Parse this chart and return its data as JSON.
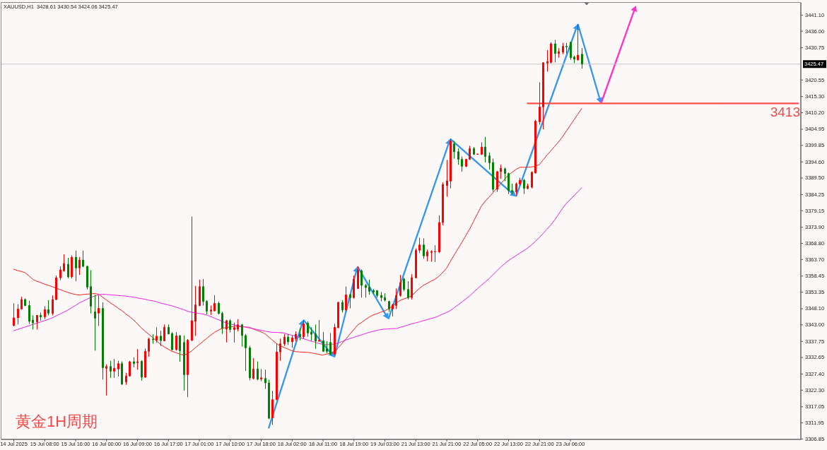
{
  "chart_data": {
    "type": "candlestick",
    "title": "XAUUSD,H1  3428.61 3430.54 3424.06 3425.47",
    "ylim": [
      3306.6,
      3445.1
    ],
    "yticks": [
      {
        "value": 3441.1,
        "label": "3441.10"
      },
      {
        "value": 3436,
        "label": "3436.00"
      },
      3430.75,
      3420.55,
      {
        "value": 3415.3,
        "label": "3415.30"
      },
      {
        "value": 3410.2,
        "label": "3410.20"
      },
      3404.95,
      3399.85,
      {
        "value": 3394.6,
        "label": "3394.60"
      },
      {
        "value": 3389.5,
        "label": "3389.50"
      },
      3384.25,
      3379.15,
      {
        "value": 3373.9,
        "label": "3373.90"
      },
      {
        "value": 3368.8,
        "label": "3368.80"
      },
      {
        "value": 3363.7,
        "label": "3363.70"
      },
      3358.45,
      3353.35,
      {
        "value": 3348.1,
        "label": "3348.10"
      },
      {
        "value": 3343,
        "label": "3343.00"
      },
      3337.75,
      3332.65,
      {
        "value": 3327.4,
        "label": "3327.40"
      },
      {
        "value": 3322.3,
        "label": "3322.30"
      },
      3317.05,
      3311.95,
      3306.85
    ],
    "categories": [
      "14 Jul 2025",
      null,
      null,
      null,
      null,
      null,
      null,
      null,
      "15 Jul 08:00",
      null,
      null,
      null,
      null,
      null,
      null,
      null,
      "15 Jul 16:00",
      null,
      null,
      null,
      null,
      null,
      null,
      null,
      "16 Jul 00:00",
      null,
      null,
      null,
      null,
      null,
      null,
      null,
      "16 Jul 09:00",
      null,
      null,
      null,
      null,
      null,
      null,
      null,
      "16 Jul 17:00",
      null,
      null,
      null,
      null,
      null,
      null,
      null,
      "17 Jul 01:00",
      null,
      null,
      null,
      null,
      null,
      null,
      null,
      "17 Jul 10:00",
      null,
      null,
      null,
      null,
      null,
      null,
      null,
      "17 Jul 18:00",
      null,
      null,
      null,
      null,
      null,
      null,
      null,
      "18 Jul 02:00",
      null,
      null,
      null,
      null,
      null,
      null,
      null,
      "18 Jul 11:00",
      null,
      null,
      null,
      null,
      null,
      null,
      null,
      "18 Jul 19:00",
      null,
      null,
      null,
      null,
      null,
      null,
      null,
      "19 Jul 03:00",
      null,
      null,
      null,
      null,
      null,
      null,
      null,
      "21 Jul 13:00",
      null,
      null,
      null,
      null,
      null,
      null,
      null,
      "21 Jul 21:00",
      null,
      null,
      null,
      null,
      null,
      null,
      null,
      "22 Jul 05:00",
      null,
      null,
      null,
      null,
      null,
      null,
      null,
      "22 Jul 13:00",
      null,
      null,
      null,
      null,
      null,
      null,
      null,
      "22 Jul 21:00",
      null,
      null,
      null,
      null,
      null,
      null,
      null,
      "23 Jul 06:00",
      null,
      null,
      null,
      null,
      null,
      null,
      null,
      null,
      null,
      null,
      null,
      null,
      null,
      null,
      null,
      null,
      null,
      null,
      null,
      null,
      null,
      null,
      null,
      null,
      null,
      null,
      null,
      null,
      null,
      null,
      null,
      null,
      null,
      null,
      null,
      null,
      null,
      null,
      null,
      null,
      null,
      null,
      null,
      null,
      null,
      null,
      null,
      null,
      null,
      null,
      null,
      null,
      null,
      null,
      null,
      null,
      null,
      null,
      null
    ],
    "ohlc": [
      [
        3342.7,
        3349.7,
        3342.4,
        3345.1
      ],
      [
        3345.1,
        3349.4,
        3343.0,
        3347.9
      ],
      [
        3347.9,
        3351.8,
        3347.7,
        3350.9
      ],
      [
        3350.9,
        3351.3,
        3348.8,
        3349.0
      ],
      [
        3349.0,
        3350.5,
        3343.2,
        3344.0
      ],
      [
        3344.4,
        3345.9,
        3341.4,
        3343.5
      ],
      [
        3343.8,
        3346.0,
        3341.4,
        3345.9
      ],
      [
        3345.9,
        3346.8,
        3344.2,
        3345.4
      ],
      [
        3345.4,
        3348.8,
        3344.7,
        3347.7
      ],
      [
        3347.7,
        3350.7,
        3345.9,
        3346.6
      ],
      [
        3346.5,
        3352.2,
        3345.9,
        3350.9
      ],
      [
        3350.9,
        3358.5,
        3350.7,
        3357.8
      ],
      [
        3357.8,
        3361.4,
        3357.0,
        3360.3
      ],
      [
        3360.0,
        3365.2,
        3359.7,
        3362.3
      ],
      [
        3362.1,
        3364.1,
        3357.6,
        3358.1
      ],
      [
        3358.1,
        3364.9,
        3357.6,
        3364.3
      ],
      [
        3364.3,
        3366.4,
        3356.7,
        3360.9
      ],
      [
        3360.9,
        3364.4,
        3358.7,
        3363.4
      ],
      [
        3363.4,
        3366.4,
        3361.1,
        3361.4
      ],
      [
        3361.4,
        3361.7,
        3354.1,
        3354.8
      ],
      [
        3355.0,
        3360.2,
        3346.5,
        3348.8
      ],
      [
        3347.0,
        3352.4,
        3334.7,
        3345.0
      ],
      [
        3346.6,
        3352.2,
        3342.5,
        3348.1
      ],
      [
        3348.1,
        3350.0,
        3325.6,
        3329.3
      ],
      [
        3329.1,
        3330.4,
        3320.5,
        3329.7
      ],
      [
        3329.7,
        3331.5,
        3326.1,
        3328.2
      ],
      [
        3328.2,
        3332.1,
        3326.1,
        3329.1
      ],
      [
        3328.9,
        3331.5,
        3326.5,
        3330.6
      ],
      [
        3330.6,
        3331.3,
        3323.9,
        3324.1
      ],
      [
        3324.8,
        3327.7,
        3323.9,
        3326.7
      ],
      [
        3326.7,
        3331.5,
        3326.5,
        3331.2
      ],
      [
        3331.2,
        3332.6,
        3329.4,
        3330.6
      ],
      [
        3330.9,
        3335.2,
        3328.7,
        3331.2
      ],
      [
        3331.3,
        3331.7,
        3325.2,
        3326.3
      ],
      [
        3326.3,
        3335.4,
        3326.1,
        3334.5
      ],
      [
        3334.5,
        3338.8,
        3332.8,
        3338.4
      ],
      [
        3338.4,
        3339.9,
        3336.9,
        3338.2
      ],
      [
        3338.0,
        3342.1,
        3337.3,
        3339.3
      ],
      [
        3339.3,
        3341.0,
        3336.2,
        3337.9
      ],
      [
        3337.8,
        3343.0,
        3337.7,
        3342.1
      ],
      [
        3342.1,
        3343.0,
        3339.9,
        3340.0
      ],
      [
        3340.1,
        3340.6,
        3334.7,
        3335.0
      ],
      [
        3335.0,
        3340.6,
        3334.7,
        3339.4
      ],
      [
        3339.4,
        3339.7,
        3331.2,
        3334.7
      ],
      [
        3337.3,
        3339.5,
        3322.1,
        3327.1
      ],
      [
        3327.1,
        3338.4,
        3320.0,
        3338.0
      ],
      [
        3338.0,
        3377.2,
        3337.7,
        3344.2
      ],
      [
        3344.0,
        3355.2,
        3339.4,
        3349.2
      ],
      [
        3349.0,
        3357.2,
        3348.8,
        3355.0
      ],
      [
        3355.0,
        3357.4,
        3349.0,
        3350.3
      ],
      [
        3350.3,
        3350.7,
        3346.2,
        3347.2
      ],
      [
        3347.2,
        3349.0,
        3346.0,
        3347.6
      ],
      [
        3347.3,
        3352.3,
        3347.2,
        3349.7
      ],
      [
        3349.7,
        3350.3,
        3346.2,
        3346.5
      ],
      [
        3346.5,
        3347.0,
        3340.0,
        3341.8
      ],
      [
        3341.5,
        3344.5,
        3337.3,
        3344.2
      ],
      [
        3344.2,
        3344.7,
        3340.5,
        3341.4
      ],
      [
        3341.4,
        3343.6,
        3337.3,
        3342.0
      ],
      [
        3341.5,
        3344.7,
        3340.8,
        3342.9
      ],
      [
        3342.9,
        3343.2,
        3336.0,
        3339.5
      ],
      [
        3339.5,
        3340.0,
        3328.3,
        3335.6
      ],
      [
        3335.6,
        3336.2,
        3325.3,
        3326.1
      ],
      [
        3325.9,
        3332.3,
        3325.6,
        3328.9
      ],
      [
        3328.9,
        3331.3,
        3325.3,
        3325.7
      ],
      [
        3325.7,
        3328.9,
        3325.0,
        3326.1
      ],
      [
        3325.9,
        3328.7,
        3322.6,
        3324.5
      ],
      [
        3324.5,
        3325.5,
        3313.0,
        3313.3
      ],
      [
        3313.4,
        3322.0,
        3311.2,
        3319.2
      ],
      [
        3319.2,
        3336.9,
        3319.0,
        3334.3
      ],
      [
        3334.3,
        3338.5,
        3331.5,
        3336.9
      ],
      [
        3336.8,
        3340.0,
        3336.2,
        3339.0
      ],
      [
        3339.0,
        3340.0,
        3336.5,
        3337.5
      ],
      [
        3337.5,
        3339.5,
        3335.6,
        3338.8
      ],
      [
        3338.5,
        3340.8,
        3337.7,
        3339.9
      ],
      [
        3339.9,
        3341.8,
        3338.0,
        3339.1
      ],
      [
        3339.1,
        3344.2,
        3338.4,
        3343.2
      ],
      [
        3343.4,
        3344.0,
        3339.1,
        3340.3
      ],
      [
        3340.6,
        3342.1,
        3337.8,
        3339.9
      ],
      [
        3340.0,
        3343.0,
        3335.3,
        3337.7
      ],
      [
        3337.7,
        3344.4,
        3337.5,
        3338.0
      ],
      [
        3337.8,
        3340.6,
        3334.3,
        3334.5
      ],
      [
        3335.3,
        3337.7,
        3333.9,
        3334.5
      ],
      [
        3337.3,
        3340.3,
        3333.3,
        3333.6
      ],
      [
        3333.6,
        3343.2,
        3333.2,
        3342.1
      ],
      [
        3342.0,
        3350.2,
        3341.8,
        3350.0
      ],
      [
        3350.0,
        3350.7,
        3346.8,
        3347.6
      ],
      [
        3347.6,
        3355.0,
        3347.0,
        3352.4
      ],
      [
        3352.4,
        3352.7,
        3348.1,
        3351.5
      ],
      [
        3351.5,
        3358.5,
        3351.2,
        3357.4
      ],
      [
        3354.4,
        3361.3,
        3354.3,
        3360.2
      ],
      [
        3360.0,
        3360.4,
        3351.5,
        3355.4
      ],
      [
        3355.4,
        3355.9,
        3351.5,
        3354.7
      ],
      [
        3354.8,
        3357.2,
        3352.4,
        3353.5
      ],
      [
        3353.7,
        3354.2,
        3352.6,
        3353.3
      ],
      [
        3353.7,
        3353.9,
        3351.5,
        3352.2
      ],
      [
        3352.2,
        3353.3,
        3350.3,
        3351.5
      ],
      [
        3351.5,
        3352.9,
        3350.3,
        3350.7
      ],
      [
        3350.3,
        3350.5,
        3347.0,
        3347.9
      ],
      [
        3347.9,
        3349.6,
        3345.5,
        3349.2
      ],
      [
        3349.0,
        3354.4,
        3347.9,
        3352.2
      ],
      [
        3352.2,
        3358.7,
        3351.8,
        3356.3
      ],
      [
        3357.4,
        3357.8,
        3353.5,
        3354.1
      ],
      [
        3354.1,
        3356.7,
        3350.9,
        3351.5
      ],
      [
        3351.5,
        3358.9,
        3350.9,
        3357.8
      ],
      [
        3357.8,
        3367.1,
        3357.6,
        3366.5
      ],
      [
        3366.5,
        3370.5,
        3365.6,
        3368.2
      ],
      [
        3368.2,
        3370.3,
        3363.8,
        3364.7
      ],
      [
        3364.7,
        3366.7,
        3363.0,
        3366.0
      ],
      [
        3365.8,
        3366.5,
        3362.9,
        3366.1
      ],
      [
        3366.0,
        3368.1,
        3362.8,
        3366.1
      ],
      [
        3366.0,
        3377.6,
        3365.6,
        3375.3
      ],
      [
        3375.3,
        3388.0,
        3374.4,
        3387.3
      ],
      [
        3387.0,
        3395.1,
        3383.5,
        3388.5
      ],
      [
        3388.4,
        3401.8,
        3386.1,
        3401.1
      ],
      [
        3400.2,
        3401.1,
        3395.5,
        3397.7
      ],
      [
        3397.7,
        3398.8,
        3393.6,
        3395.3
      ],
      [
        3395.3,
        3396.2,
        3391.4,
        3393.1
      ],
      [
        3393.1,
        3395.5,
        3392.8,
        3395.3
      ],
      [
        3395.3,
        3399.6,
        3395.1,
        3398.7
      ],
      [
        3398.7,
        3399.2,
        3396.7,
        3396.9
      ],
      [
        3396.9,
        3397.1,
        3396.8,
        3397.0
      ],
      [
        3396.9,
        3400.7,
        3396.7,
        3399.2
      ],
      [
        3399.2,
        3402.4,
        3394.3,
        3396.2
      ],
      [
        3396.4,
        3397.5,
        3392.1,
        3394.2
      ],
      [
        3394.3,
        3395.5,
        3385.0,
        3385.8
      ],
      [
        3385.8,
        3391.7,
        3385.0,
        3391.4
      ],
      [
        3391.4,
        3393.6,
        3389.1,
        3392.5
      ],
      [
        3392.3,
        3392.7,
        3388.4,
        3390.8
      ],
      [
        3390.8,
        3391.1,
        3384.3,
        3385.4
      ],
      [
        3385.4,
        3387.6,
        3384.3,
        3385.0
      ],
      [
        3385.0,
        3388.0,
        3383.9,
        3387.5
      ],
      [
        3387.5,
        3389.5,
        3386.9,
        3388.7
      ],
      [
        3388.7,
        3389.1,
        3384.3,
        3386.1
      ],
      [
        3386.1,
        3387.6,
        3385.8,
        3386.9
      ],
      [
        3386.5,
        3391.5,
        3386.1,
        3391.2
      ],
      [
        3391.0,
        3407.8,
        3390.8,
        3407.4
      ],
      [
        3407.2,
        3419.7,
        3406.3,
        3411.9
      ],
      [
        3411.9,
        3426.0,
        3404.8,
        3425.9
      ],
      [
        3425.8,
        3429.9,
        3423.1,
        3426.3
      ],
      [
        3426.0,
        3432.4,
        3425.7,
        3431.9
      ],
      [
        3431.9,
        3433.1,
        3426.0,
        3428.8
      ],
      [
        3428.8,
        3430.5,
        3427.5,
        3429.4
      ],
      [
        3429.2,
        3432.2,
        3428.6,
        3431.1
      ],
      [
        3431.1,
        3432.2,
        3428.8,
        3430.9
      ],
      [
        3432.4,
        3432.5,
        3426.8,
        3427.5
      ],
      [
        3427.7,
        3428.1,
        3425.8,
        3427.0
      ],
      [
        3426.8,
        3438.1,
        3426.6,
        3428.3
      ],
      [
        3428.61,
        3430.54,
        3424.06,
        3425.47
      ],
      null,
      null,
      null,
      null,
      null,
      null,
      null,
      null,
      null,
      null,
      null,
      null,
      null,
      null,
      null,
      null,
      null,
      null,
      null,
      null,
      null,
      null,
      null,
      null,
      null,
      null,
      null,
      null,
      null,
      null,
      null,
      null,
      null,
      null,
      null,
      null,
      null,
      null,
      null,
      null,
      null,
      null,
      null,
      null,
      null,
      null,
      null,
      null,
      null,
      null,
      null,
      null,
      null,
      null,
      null,
      null
    ],
    "colors": [
      "#ff0000",
      "#ff0000",
      "#ff0000",
      "#008000",
      "#008000",
      "#008000",
      "#ff0000",
      "#008000",
      "#ff0000",
      "#008000",
      "#ff0000",
      "#ff0000",
      "#ff0000",
      "#ff0000",
      "#008000",
      "#ff0000",
      "#008000",
      "#ff0000",
      "#008000",
      "#008000",
      "#008000",
      "#008000",
      "#ff0000",
      "#008000",
      "#ff0000",
      "#008000",
      "#ff0000",
      "#ff0000",
      "#008000",
      "#ff0000",
      "#ff0000",
      "#008000",
      "#ff0000",
      "#008000",
      "#ff0000",
      "#ff0000",
      "#008000",
      "#ff0000",
      "#008000",
      "#ff0000",
      "#008000",
      "#008000",
      "#ff0000",
      "#008000",
      "#008000",
      "#ff0000",
      "#ff0000",
      "#ff0000",
      "#ff0000",
      "#008000",
      "#008000",
      "#ff0000",
      "#ff0000",
      "#008000",
      "#008000",
      "#ff0000",
      "#008000",
      "#ff0000",
      "#ff0000",
      "#008000",
      "#008000",
      "#008000",
      "#ff0000",
      "#008000",
      "#ff0000",
      "#008000",
      "#008000",
      "#ff0000",
      "#ff0000",
      "#ff0000",
      "#ff0000",
      "#008000",
      "#ff0000",
      "#ff0000",
      "#008000",
      "#ff0000",
      "#008000",
      "#008000",
      "#008000",
      "#ff0000",
      "#008000",
      "#008000",
      "#008000",
      "#ff0000",
      "#ff0000",
      "#008000",
      "#ff0000",
      "#008000",
      "#ff0000",
      "#ff0000",
      "#008000",
      "#008000",
      "#008000",
      "#008000",
      "#008000",
      "#008000",
      "#008000",
      "#008000",
      "#ff0000",
      "#ff0000",
      "#ff0000",
      "#008000",
      "#008000",
      "#ff0000",
      "#ff0000",
      "#ff0000",
      "#008000",
      "#ff0000",
      "#ff0000",
      "#ff0000",
      "#ff0000",
      "#ff0000",
      "#ff0000",
      "#ff0000",
      "#008000",
      "#008000",
      "#008000",
      "#ff0000",
      "#ff0000",
      "#008000",
      "#ff0000",
      "#ff0000",
      "#008000",
      "#008000",
      "#008000",
      "#ff0000",
      "#ff0000",
      "#008000",
      "#008000",
      "#008000",
      "#ff0000",
      "#ff0000",
      "#008000",
      "#ff0000",
      "#ff0000",
      "#ff0000",
      "#ff0000",
      "#ff0000",
      "#ff0000",
      "#ff0000",
      "#008000",
      "#ff0000",
      "#ff0000",
      "#008000",
      "#008000",
      "#008000",
      "#ff0000",
      "#008000",
      null,
      null,
      null,
      null,
      null,
      null,
      null,
      null,
      null,
      null,
      null,
      null,
      null,
      null,
      null,
      null,
      null,
      null,
      null,
      null,
      null,
      null,
      null,
      null,
      null,
      null,
      null,
      null,
      null,
      null,
      null,
      null,
      null,
      null,
      null,
      null,
      null,
      null,
      null,
      null,
      null,
      null,
      null,
      null,
      null,
      null,
      null,
      null,
      null,
      null,
      null,
      null,
      null,
      null,
      null,
      null
    ],
    "series": [
      {
        "type": "line",
        "color": "#ff2020",
        "values": [
          3360.5,
          3360.1,
          3359.8,
          3359.4,
          3358.4,
          3357.3,
          3356.7,
          3356.3,
          3355.8,
          3355.4,
          3355.0,
          3354.5,
          3354.1,
          3353.6,
          3353.2,
          3352.8,
          3352.5,
          3352.3,
          3352.5,
          3352.6,
          3352.7,
          3352.8,
          3352.6,
          3351.7,
          3350.8,
          3349.9,
          3349.1,
          3348.2,
          3347.4,
          3346.4,
          3345.5,
          3344.5,
          3343.3,
          3342.0,
          3340.9,
          3339.9,
          3338.9,
          3337.8,
          3336.7,
          3335.9,
          3335.2,
          3334.5,
          3334.1,
          3333.6,
          3333.3,
          3333.7,
          3334.5,
          3335.6,
          3336.6,
          3337.6,
          3338.6,
          3339.6,
          3340.5,
          3341.2,
          3341.8,
          3342.0,
          3342.2,
          3342.4,
          3342.4,
          3342.3,
          3342.2,
          3342.1,
          3341.6,
          3341.1,
          3340.7,
          3340.1,
          3339.1,
          3338.0,
          3337.0,
          3336.2,
          3335.7,
          3335.2,
          3334.7,
          3334.4,
          3334.3,
          3334.2,
          3334.2,
          3334.0,
          3333.8,
          3333.5,
          3333.3,
          3333.6,
          3333.9,
          3334.3,
          3335.6,
          3337.0,
          3338.4,
          3339.9,
          3341.3,
          3342.8,
          3343.6,
          3344.5,
          3345.3,
          3346.0,
          3346.4,
          3346.9,
          3347.3,
          3347.9,
          3348.8,
          3349.8,
          3350.6,
          3351.1,
          3351.5,
          3352.1,
          3353.3,
          3354.4,
          3355.4,
          3356.0,
          3356.7,
          3357.3,
          3358.2,
          3359.4,
          3360.8,
          3362.9,
          3365.0,
          3367.0,
          3369.0,
          3371.1,
          3373.2,
          3375.6,
          3378.0,
          3380.4,
          3382.0,
          3383.3,
          3384.7,
          3386.1,
          3387.5,
          3388.9,
          3390.3,
          3391.2,
          3392.1,
          3392.8,
          3392.8,
          3392.8,
          3392.9,
          3393.1,
          3393.6,
          3395.1,
          3396.6,
          3398.0,
          3399.4,
          3400.8,
          3402.4,
          3404.2,
          3406.0,
          3407.8,
          3409.6,
          3411.4,
          null,
          null,
          null,
          null,
          null,
          null,
          null,
          null,
          null,
          null,
          null,
          null,
          null,
          null,
          null,
          null,
          null,
          null,
          null,
          null,
          null,
          null,
          null,
          null,
          null,
          null,
          null,
          null,
          null,
          null,
          null,
          null,
          null,
          null,
          null,
          null,
          null,
          null,
          null,
          null,
          null,
          null,
          null,
          null,
          null,
          null,
          null,
          null,
          null,
          null,
          null,
          null,
          null,
          null,
          null,
          null
        ]
      },
      {
        "type": "line",
        "color": "#ee22ee",
        "values": [
          3341.0,
          3341.4,
          3341.8,
          3342.2,
          3342.6,
          3343.0,
          3343.4,
          3343.8,
          3344.2,
          3344.6,
          3345.1,
          3345.7,
          3346.3,
          3346.9,
          3347.5,
          3348.3,
          3349.0,
          3349.8,
          3350.4,
          3351.0,
          3351.6,
          3352.0,
          3352.4,
          3352.6,
          3352.5,
          3352.4,
          3352.3,
          3352.2,
          3352.1,
          3352.0,
          3351.8,
          3351.7,
          3351.4,
          3351.2,
          3351.0,
          3350.7,
          3350.5,
          3350.2,
          3349.8,
          3349.5,
          3349.2,
          3348.9,
          3348.5,
          3348.1,
          3347.7,
          3347.2,
          3346.9,
          3346.7,
          3346.5,
          3346.3,
          3346.0,
          3345.5,
          3345.0,
          3344.5,
          3344.0,
          3343.5,
          3343.2,
          3342.9,
          3342.7,
          3342.4,
          3342.2,
          3341.9,
          3341.7,
          3341.4,
          3341.2,
          3340.9,
          3340.7,
          3340.5,
          3340.5,
          3340.4,
          3340.3,
          3339.9,
          3339.6,
          3339.3,
          3338.9,
          3338.5,
          3338.1,
          3337.7,
          3337.4,
          3337.0,
          3336.7,
          3336.6,
          3336.7,
          3336.8,
          3337.1,
          3337.6,
          3338.1,
          3338.5,
          3338.9,
          3339.3,
          3339.7,
          3340.1,
          3340.5,
          3340.8,
          3341.1,
          3341.4,
          3341.5,
          3341.6,
          3341.7,
          3341.7,
          3342.1,
          3342.4,
          3342.8,
          3343.2,
          3343.5,
          3343.8,
          3344.2,
          3344.5,
          3344.9,
          3345.2,
          3345.7,
          3346.3,
          3346.8,
          3347.4,
          3348.3,
          3349.2,
          3350.1,
          3351.1,
          3352.0,
          3353.2,
          3354.3,
          3355.4,
          3356.4,
          3357.5,
          3358.7,
          3359.9,
          3361.1,
          3362.2,
          3363.2,
          3364.0,
          3364.8,
          3365.6,
          3366.4,
          3367.2,
          3368.2,
          3369.3,
          3370.5,
          3371.8,
          3373.2,
          3374.5,
          3376.1,
          3377.9,
          3379.7,
          3381.3,
          3382.5,
          3383.8,
          3385.1,
          3386.3,
          null,
          null,
          null,
          null,
          null,
          null,
          null,
          null,
          null,
          null,
          null,
          null,
          null,
          null,
          null,
          null,
          null,
          null,
          null,
          null,
          null,
          null,
          null,
          null,
          null,
          null,
          null,
          null,
          null,
          null,
          null,
          null,
          null,
          null,
          null,
          null,
          null,
          null,
          null,
          null,
          null,
          null,
          null,
          null,
          null,
          null,
          null,
          null,
          null,
          null,
          null,
          null,
          null,
          null,
          null,
          null
        ]
      },
      {
        "type": "line",
        "color": "#ff4f4f",
        "values": [
          null,
          null,
          null,
          null,
          null,
          null,
          null,
          null,
          null,
          null,
          null,
          null,
          null,
          null,
          null,
          null,
          null,
          null,
          null,
          null,
          null,
          null,
          null,
          null,
          null,
          null,
          null,
          null,
          null,
          null,
          null,
          null,
          null,
          null,
          null,
          null,
          null,
          null,
          null,
          null,
          null,
          null,
          null,
          null,
          null,
          null,
          null,
          null,
          null,
          null,
          null,
          null,
          null,
          null,
          null,
          null,
          null,
          null,
          null,
          null,
          null,
          null,
          null,
          null,
          null,
          null,
          null,
          null,
          null,
          null,
          null,
          null,
          null,
          null,
          null,
          null,
          null,
          null,
          null,
          null,
          null,
          null,
          null,
          null,
          null,
          null,
          null,
          null,
          null,
          null,
          null,
          null,
          null,
          null,
          null,
          null,
          null,
          null,
          null,
          null,
          null,
          null,
          null,
          null,
          null,
          null,
          null,
          null,
          null,
          null,
          null,
          null,
          null,
          null,
          null,
          null,
          null,
          null,
          null,
          null,
          null,
          null,
          null,
          null,
          null,
          null,
          null,
          null,
          null,
          null,
          null,
          null,
          null,
          3413,
          3413,
          3413,
          3413,
          3413,
          3413,
          3413,
          3413,
          3413,
          3413,
          3413,
          3413,
          3413,
          3413,
          3413,
          3413,
          3413,
          3413,
          3413,
          3413,
          3413,
          3413,
          3413,
          3413,
          3413,
          3413,
          3413,
          3413,
          3413,
          3413,
          3413,
          3413,
          3413,
          3413,
          3413,
          3413,
          3413,
          3413,
          3413,
          3413,
          3413,
          3413,
          3413,
          3413,
          3413,
          3413,
          3413,
          3413,
          3413,
          3413,
          3413,
          3413,
          3413,
          3413,
          3413,
          3413,
          3413,
          3413,
          3413,
          3413,
          3413,
          3413,
          3413,
          3413,
          3413,
          3413,
          3413,
          3413,
          3413,
          3413,
          3413
        ]
      }
    ],
    "ref_lines": [
      {
        "axis": "y",
        "value": 3425.47,
        "label": "3425.47",
        "color": "#c4c4cc"
      }
    ],
    "annotations": [
      "黄金1H周期",
      {
        "text": "3413",
        "y": 3413
      }
    ]
  }
}
